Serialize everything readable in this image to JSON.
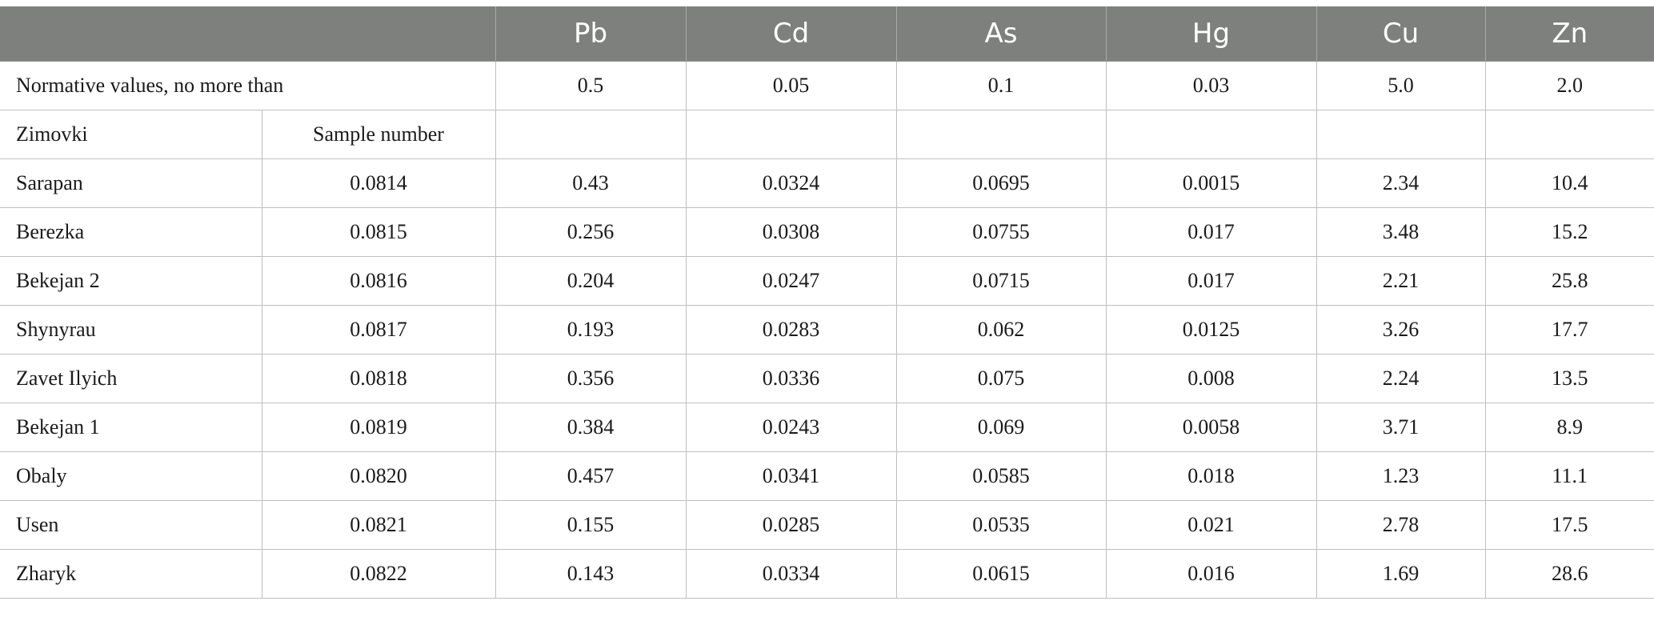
{
  "table": {
    "headers": [
      "",
      "Pb",
      "Cd",
      "As",
      "Hg",
      "Cu",
      "Zn"
    ],
    "normative": {
      "label": "Normative values, no more than",
      "values": [
        "0.5",
        "0.05",
        "0.1",
        "0.03",
        "5.0",
        "2.0"
      ]
    },
    "subheader": {
      "place_label": "Zimovki",
      "sample_label": "Sample number"
    },
    "rows": [
      {
        "place": "Sarapan",
        "sample": "0.0814",
        "values": [
          "0.43",
          "0.0324",
          "0.0695",
          "0.0015",
          "2.34",
          "10.4"
        ]
      },
      {
        "place": "Berezka",
        "sample": "0.0815",
        "values": [
          "0.256",
          "0.0308",
          "0.0755",
          "0.017",
          "3.48",
          "15.2"
        ]
      },
      {
        "place": "Bekejan 2",
        "sample": "0.0816",
        "values": [
          "0.204",
          "0.0247",
          "0.0715",
          "0.017",
          "2.21",
          "25.8"
        ]
      },
      {
        "place": "Shynyrau",
        "sample": "0.0817",
        "values": [
          "0.193",
          "0.0283",
          "0.062",
          "0.0125",
          "3.26",
          "17.7"
        ]
      },
      {
        "place": "Zavet Ilyich",
        "sample": "0.0818",
        "values": [
          "0.356",
          "0.0336",
          "0.075",
          "0.008",
          "2.24",
          "13.5"
        ]
      },
      {
        "place": "Bekejan 1",
        "sample": "0.0819",
        "values": [
          "0.384",
          "0.0243",
          "0.069",
          "0.0058",
          "3.71",
          "8.9"
        ]
      },
      {
        "place": "Obaly",
        "sample": "0.0820",
        "values": [
          "0.457",
          "0.0341",
          "0.0585",
          "0.018",
          "1.23",
          "11.1"
        ]
      },
      {
        "place": "Usen",
        "sample": "0.0821",
        "values": [
          "0.155",
          "0.0285",
          "0.0535",
          "0.021",
          "2.78",
          "17.5"
        ]
      },
      {
        "place": "Zharyk",
        "sample": "0.0822",
        "values": [
          "0.143",
          "0.0334",
          "0.0615",
          "0.016",
          "1.69",
          "28.6"
        ]
      }
    ]
  },
  "colors": {
    "header_bg": "#7e807e",
    "header_text": "#ffffff",
    "grid": "#bfbfbf"
  }
}
